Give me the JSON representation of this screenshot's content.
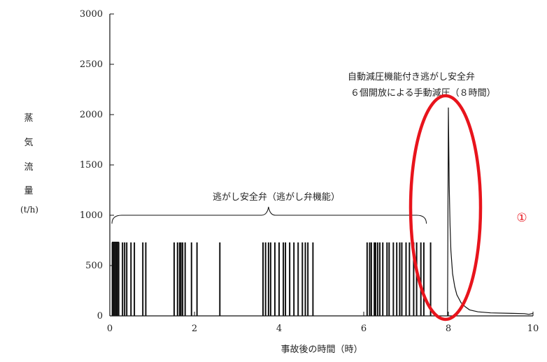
{
  "chart_data": {
    "type": "line",
    "xlabel": "事故後の時間（時）",
    "ylabel_chars": [
      "蒸",
      "気",
      "流",
      "量"
    ],
    "ylabel_unit": "(t/h)",
    "xlim": [
      0,
      10
    ],
    "ylim": [
      0,
      3000
    ],
    "x_ticks": [
      "0",
      "2",
      "4",
      "6",
      "8",
      "10"
    ],
    "y_ticks": [
      "0",
      "500",
      "1000",
      "1500",
      "2000",
      "2500",
      "3000"
    ],
    "grid": false,
    "annotations": {
      "srv": "逃がし安全弁（逃がし弁機能）",
      "ads_line1": "自動減圧機能付き逃がし安全弁",
      "ads_line2": "６個開放による手動減圧（８時間）",
      "marker": "①",
      "marker_color": "#e8141c",
      "ellipse_color": "#e8141c"
    },
    "pulse_height": 730,
    "pulse_times": [
      0.06,
      0.09,
      0.12,
      0.15,
      0.18,
      0.21,
      0.3,
      0.35,
      0.4,
      0.5,
      0.58,
      0.78,
      0.85,
      1.52,
      1.6,
      1.65,
      1.68,
      1.72,
      1.78,
      1.93,
      2.06,
      2.6,
      3.62,
      3.68,
      3.75,
      3.8,
      3.9,
      4.0,
      4.1,
      4.15,
      4.25,
      4.35,
      4.45,
      4.55,
      4.62,
      4.68,
      4.8,
      6.08,
      6.14,
      6.18,
      6.25,
      6.28,
      6.33,
      6.38,
      6.45,
      6.55,
      6.6,
      6.7,
      6.78,
      6.85,
      6.9,
      7.0,
      7.08,
      7.18,
      7.25,
      7.35,
      7.42,
      7.58
    ],
    "decay_series": {
      "x": [
        7.98,
        8.0,
        8.02,
        8.04,
        8.06,
        8.1,
        8.15,
        8.2,
        8.3,
        8.4,
        8.5,
        8.7,
        9.0,
        9.5,
        9.8,
        9.9,
        10.0
      ],
      "y": [
        0,
        2070,
        1300,
        900,
        650,
        420,
        290,
        210,
        130,
        90,
        60,
        40,
        30,
        25,
        22,
        15,
        25
      ]
    }
  }
}
